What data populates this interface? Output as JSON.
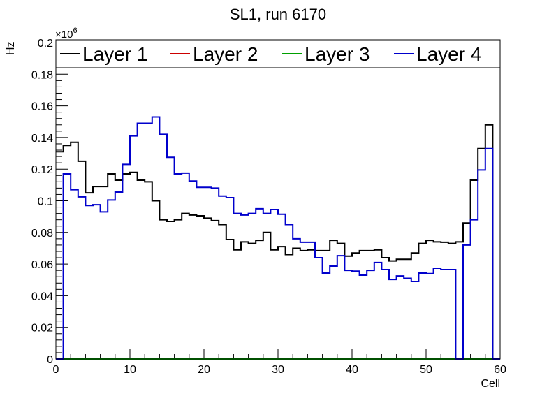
{
  "chart_data": {
    "type": "line",
    "style": "step-histogram",
    "title": "SL1, run 6170",
    "xlabel": "Cell",
    "ylabel": "Hz",
    "y_exponent_label": "×10",
    "y_exponent_power": "6",
    "xlim": [
      0,
      60
    ],
    "ylim": [
      0,
      0.2
    ],
    "x_ticks": [
      0,
      10,
      20,
      30,
      40,
      50,
      60
    ],
    "x_tick_labels": [
      "0",
      "10",
      "20",
      "30",
      "40",
      "50",
      "60"
    ],
    "y_ticks": [
      0,
      0.02,
      0.04,
      0.06,
      0.08,
      0.1,
      0.12,
      0.14,
      0.16,
      0.18,
      0.2
    ],
    "y_tick_labels": [
      "0",
      "0.02",
      "0.04",
      "0.06",
      "0.08",
      "0.1",
      "0.12",
      "0.14",
      "0.16",
      "0.18",
      "0.2"
    ],
    "grid": false,
    "legend_position": "top",
    "bin_width": 1,
    "series": [
      {
        "name": "Layer 1",
        "color": "#000000",
        "values": [
          0.131,
          0.135,
          0.137,
          0.125,
          0.105,
          0.109,
          0.109,
          0.117,
          0.113,
          0.117,
          0.118,
          0.113,
          0.112,
          0.1,
          0.088,
          0.087,
          0.088,
          0.092,
          0.091,
          0.0905,
          0.089,
          0.0875,
          0.085,
          0.0755,
          0.069,
          0.074,
          0.073,
          0.075,
          0.08,
          0.069,
          0.071,
          0.066,
          0.07,
          0.0685,
          0.069,
          0.0685,
          0.0685,
          0.075,
          0.073,
          0.065,
          0.067,
          0.0685,
          0.0685,
          0.069,
          0.064,
          0.062,
          0.063,
          0.063,
          0.067,
          0.073,
          0.075,
          0.074,
          0.0738,
          0.073,
          0.074,
          0.086,
          0.113,
          0.133,
          0.148,
          0
        ]
      },
      {
        "name": "Layer 2",
        "color": "#cc0000",
        "values": [
          0,
          0,
          0,
          0,
          0,
          0,
          0,
          0,
          0,
          0,
          0,
          0,
          0,
          0,
          0,
          0,
          0,
          0,
          0,
          0,
          0,
          0,
          0,
          0,
          0,
          0,
          0,
          0,
          0,
          0,
          0,
          0,
          0,
          0,
          0,
          0,
          0,
          0,
          0,
          0,
          0,
          0,
          0,
          0,
          0,
          0,
          0,
          0,
          0,
          0,
          0,
          0,
          0,
          0,
          0,
          0,
          0,
          0,
          0,
          0
        ]
      },
      {
        "name": "Layer 3",
        "color": "#00a000",
        "values": [
          0,
          0,
          0,
          0,
          0,
          0,
          0,
          0,
          0,
          0,
          0,
          0,
          0,
          0,
          0,
          0,
          0,
          0,
          0,
          0,
          0,
          0,
          0,
          0,
          0,
          0,
          0,
          0,
          0,
          0,
          0,
          0,
          0,
          0,
          0,
          0,
          0,
          0,
          0,
          0,
          0,
          0,
          0,
          0,
          0,
          0,
          0,
          0,
          0,
          0,
          0,
          0,
          0,
          0,
          0,
          0,
          0,
          0,
          0,
          0
        ]
      },
      {
        "name": "Layer 4",
        "color": "#0000cc",
        "values": [
          0,
          0.117,
          0.107,
          0.1025,
          0.097,
          0.0975,
          0.093,
          0.1005,
          0.1055,
          0.123,
          0.141,
          0.149,
          0.149,
          0.153,
          0.142,
          0.1275,
          0.117,
          0.1175,
          0.1125,
          0.1085,
          0.1085,
          0.108,
          0.103,
          0.102,
          0.092,
          0.091,
          0.092,
          0.095,
          0.092,
          0.0945,
          0.0915,
          0.085,
          0.076,
          0.0738,
          0.0738,
          0.064,
          0.0543,
          0.0587,
          0.0653,
          0.056,
          0.0555,
          0.053,
          0.056,
          0.061,
          0.0565,
          0.0503,
          0.0525,
          0.051,
          0.049,
          0.0543,
          0.054,
          0.0574,
          0.0565,
          0.0565,
          0,
          0.072,
          0.088,
          0.1195,
          0.133,
          0
        ]
      }
    ]
  }
}
